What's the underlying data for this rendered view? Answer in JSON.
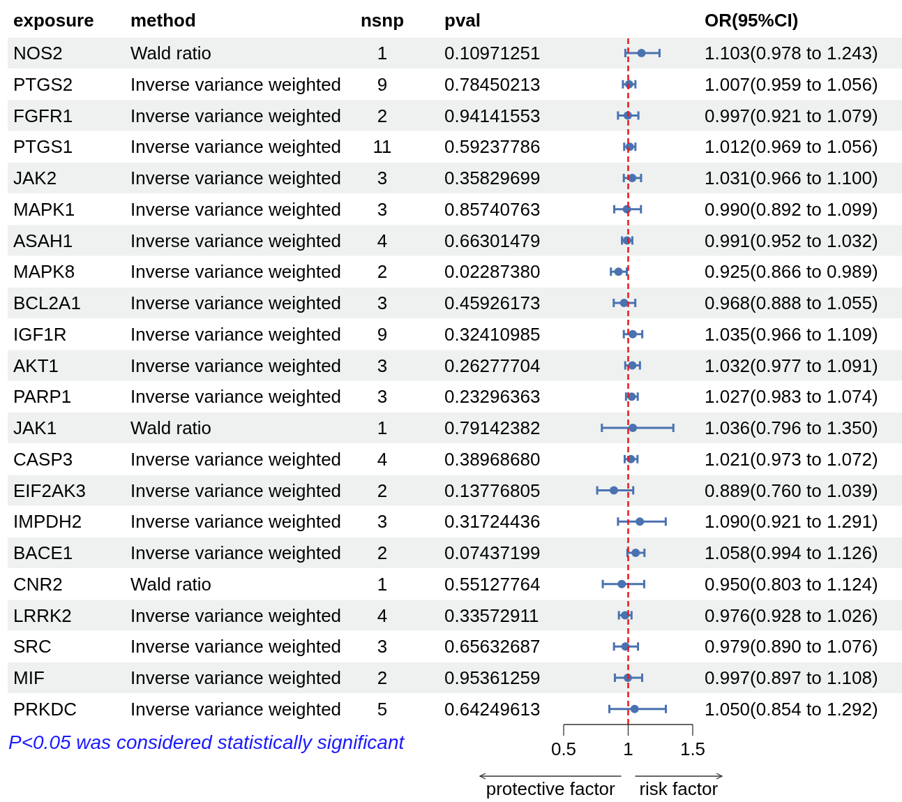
{
  "chart_data": [
    {
      "type": "heatmap",
      "ylabel": "exposure",
      "categories": [
        "method",
        "nsnp",
        "pval"
      ],
      "y_categories": [
        "NOS2",
        "PTGS2",
        "FGFR1",
        "PTGS1",
        "JAK2",
        "MAPK1",
        "ASAH1",
        "MAPK8",
        "BCL2A1",
        "IGF1R",
        "AKT1",
        "PARP1",
        "JAK1",
        "CASP3",
        "EIF2AK3",
        "IMPDH2",
        "BACE1",
        "CNR2",
        "LRRK2",
        "SRC",
        "MIF",
        "PRKDC"
      ],
      "cells": [
        [
          null,
          null,
          null
        ],
        [
          null,
          null,
          null
        ],
        [
          null,
          null,
          null
        ],
        [
          null,
          null,
          null
        ],
        [
          null,
          null,
          null
        ],
        [
          null,
          null,
          null
        ],
        [
          null,
          null,
          null
        ],
        [
          null,
          null,
          null
        ],
        [
          null,
          null,
          null
        ],
        [
          null,
          null,
          null
        ],
        [
          null,
          null,
          null
        ],
        [
          null,
          null,
          null
        ],
        [
          null,
          null,
          null
        ],
        [
          null,
          null,
          null
        ],
        [
          null,
          null,
          null
        ],
        [
          null,
          null,
          null
        ],
        [
          null,
          null,
          null
        ],
        [
          null,
          null,
          null
        ],
        [
          null,
          null,
          null
        ],
        [
          null,
          null,
          null
        ],
        [
          null,
          null,
          null
        ],
        [
          null,
          null,
          null
        ]
      ],
      "cell_labels": [
        [
          "Wald ratio",
          "1",
          "0.10971251"
        ],
        [
          "Inverse variance weighted",
          "9",
          "0.78450213"
        ],
        [
          "Inverse variance weighted",
          "2",
          "0.94141553"
        ],
        [
          "Inverse variance weighted",
          "11",
          "0.59237786"
        ],
        [
          "Inverse variance weighted",
          "3",
          "0.35829699"
        ],
        [
          "Inverse variance weighted",
          "3",
          "0.85740763"
        ],
        [
          "Inverse variance weighted",
          "4",
          "0.66301479"
        ],
        [
          "Inverse variance weighted",
          "2",
          "0.02287380"
        ],
        [
          "Inverse variance weighted",
          "3",
          "0.45926173"
        ],
        [
          "Inverse variance weighted",
          "9",
          "0.32410985"
        ],
        [
          "Inverse variance weighted",
          "3",
          "0.26277704"
        ],
        [
          "Inverse variance weighted",
          "3",
          "0.23296363"
        ],
        [
          "Wald ratio",
          "1",
          "0.79142382"
        ],
        [
          "Inverse variance weighted",
          "4",
          "0.38968680"
        ],
        [
          "Inverse variance weighted",
          "2",
          "0.13776805"
        ],
        [
          "Inverse variance weighted",
          "3",
          "0.31724436"
        ],
        [
          "Inverse variance weighted",
          "2",
          "0.07437199"
        ],
        [
          "Wald ratio",
          "1",
          "0.55127764"
        ],
        [
          "Inverse variance weighted",
          "4",
          "0.33572911"
        ],
        [
          "Inverse variance weighted",
          "3",
          "0.65632687"
        ],
        [
          "Inverse variance weighted",
          "2",
          "0.95361259"
        ],
        [
          "Inverse variance weighted",
          "5",
          "0.64249613"
        ]
      ],
      "annotations": [
        "P<0.05 was considered statistically significant"
      ]
    },
    {
      "type": "scatter",
      "orientation": "horizontal",
      "title": "OR(95%CI)",
      "marker": "circle",
      "color": "#4a72b0",
      "grid": false,
      "tick_labels": "x",
      "categories": [
        null,
        null,
        null,
        null,
        null,
        null,
        null,
        null,
        null,
        null,
        null,
        null,
        null,
        null,
        null,
        null,
        null,
        null,
        null,
        null,
        null,
        null
      ],
      "values": [
        1.103,
        1.007,
        0.997,
        1.012,
        1.031,
        0.99,
        0.991,
        0.925,
        0.968,
        1.035,
        1.032,
        1.027,
        1.036,
        1.021,
        0.889,
        1.09,
        1.058,
        0.95,
        0.976,
        0.979,
        0.997,
        1.05
      ],
      "errors": [
        [
          0.978,
          1.243
        ],
        [
          0.959,
          1.056
        ],
        [
          0.921,
          1.079
        ],
        [
          0.969,
          1.056
        ],
        [
          0.966,
          1.1
        ],
        [
          0.892,
          1.099
        ],
        [
          0.952,
          1.032
        ],
        [
          0.866,
          0.989
        ],
        [
          0.888,
          1.055
        ],
        [
          0.966,
          1.109
        ],
        [
          0.977,
          1.091
        ],
        [
          0.983,
          1.074
        ],
        [
          0.796,
          1.35
        ],
        [
          0.973,
          1.072
        ],
        [
          0.76,
          1.039
        ],
        [
          0.921,
          1.291
        ],
        [
          0.994,
          1.126
        ],
        [
          0.803,
          1.124
        ],
        [
          0.928,
          1.026
        ],
        [
          0.89,
          1.076
        ],
        [
          0.897,
          1.108
        ],
        [
          0.854,
          1.292
        ]
      ],
      "value_labels": [
        "1.103(0.978 to 1.243)",
        "1.007(0.959 to 1.056)",
        "0.997(0.921 to 1.079)",
        "1.012(0.969 to 1.056)",
        "1.031(0.966 to 1.100)",
        "0.990(0.892 to 1.099)",
        "0.991(0.952 to 1.032)",
        "0.925(0.866 to 0.989)",
        "0.968(0.888 to 1.055)",
        "1.035(0.966 to 1.109)",
        "1.032(0.977 to 1.091)",
        "1.027(0.983 to 1.074)",
        "1.036(0.796 to 1.350)",
        "1.021(0.973 to 1.072)",
        "0.889(0.760 to 1.039)",
        "1.090(0.921 to 1.291)",
        "1.058(0.994 to 1.126)",
        "0.950(0.803 to 1.124)",
        "0.976(0.928 to 1.026)",
        "0.979(0.890 to 1.076)",
        "0.997(0.897 to 1.108)",
        "1.050(0.854 to 1.292)"
      ],
      "xlim": [
        0.5,
        1.5
      ],
      "xticks": [
        0.5,
        1,
        1.5
      ],
      "ref_lines": [
        {
          "axis": "x",
          "value": 1,
          "color": "#e8191c",
          "line_style": "dashed"
        }
      ],
      "annotations": [
        "protective factor",
        "risk factor"
      ]
    }
  ]
}
